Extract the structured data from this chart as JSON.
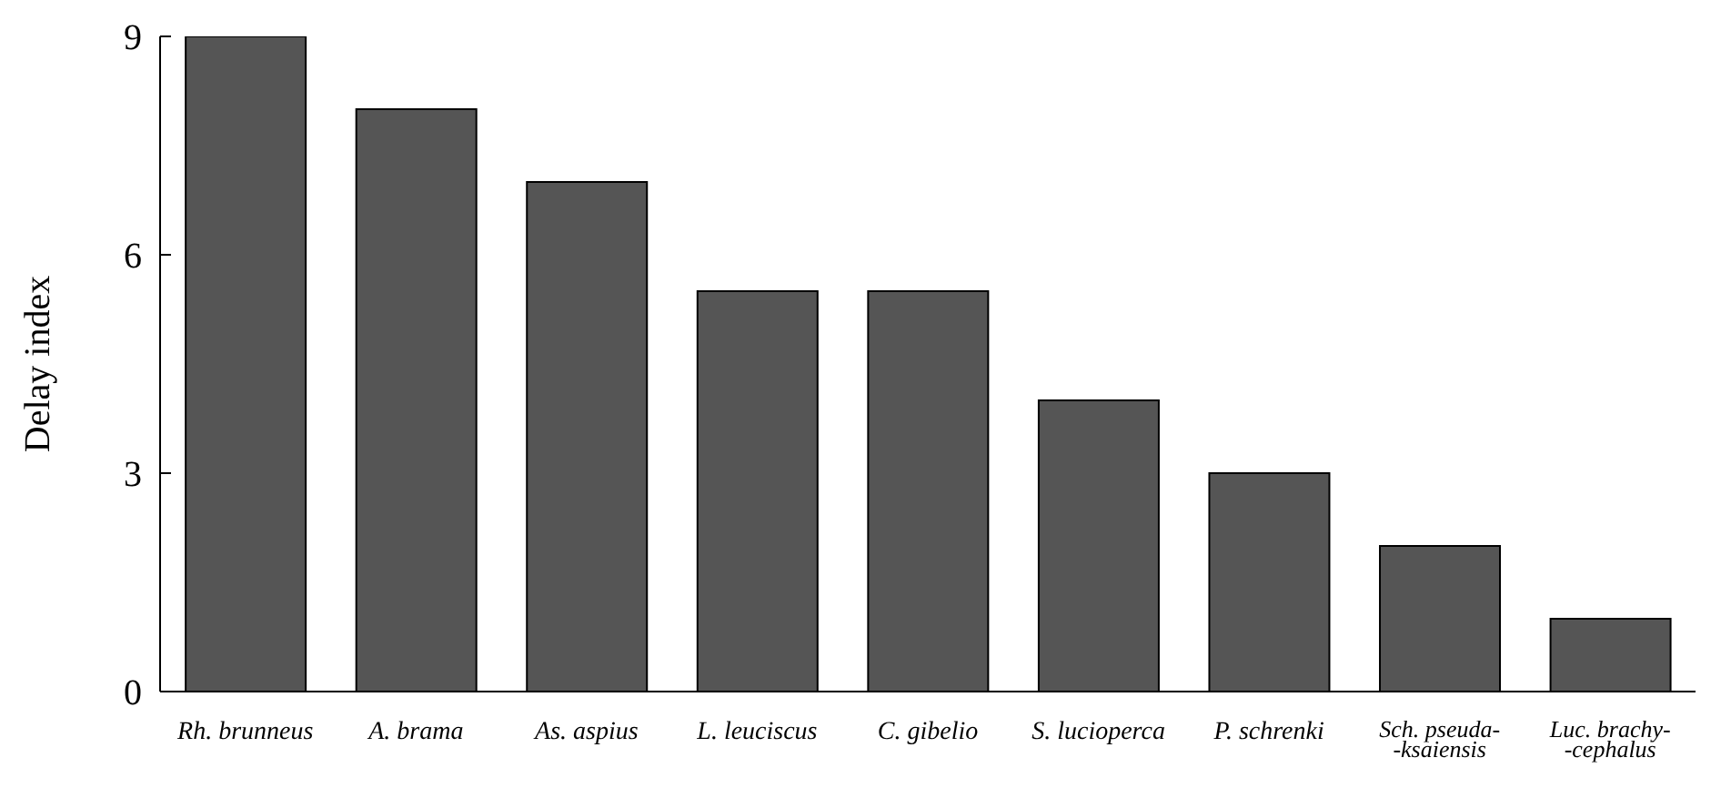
{
  "chart_data": {
    "type": "bar",
    "ylabel": "Delay index",
    "categories": [
      "Rh. brunneus",
      "A. brama",
      "As. aspius",
      "L. leuciscus",
      "C. gibelio",
      "S. lucioperca",
      "P. schrenki",
      "Sch. pseuda-\n-ksaiensis",
      "Luc. brachy-\n-cephalus"
    ],
    "values": [
      9,
      8,
      7,
      5.5,
      5.5,
      4,
      3,
      2,
      1
    ],
    "color": "#555555",
    "ylim": [
      0,
      9
    ],
    "yticks": [
      0,
      3,
      6,
      9
    ],
    "grid": false,
    "legend": false
  }
}
